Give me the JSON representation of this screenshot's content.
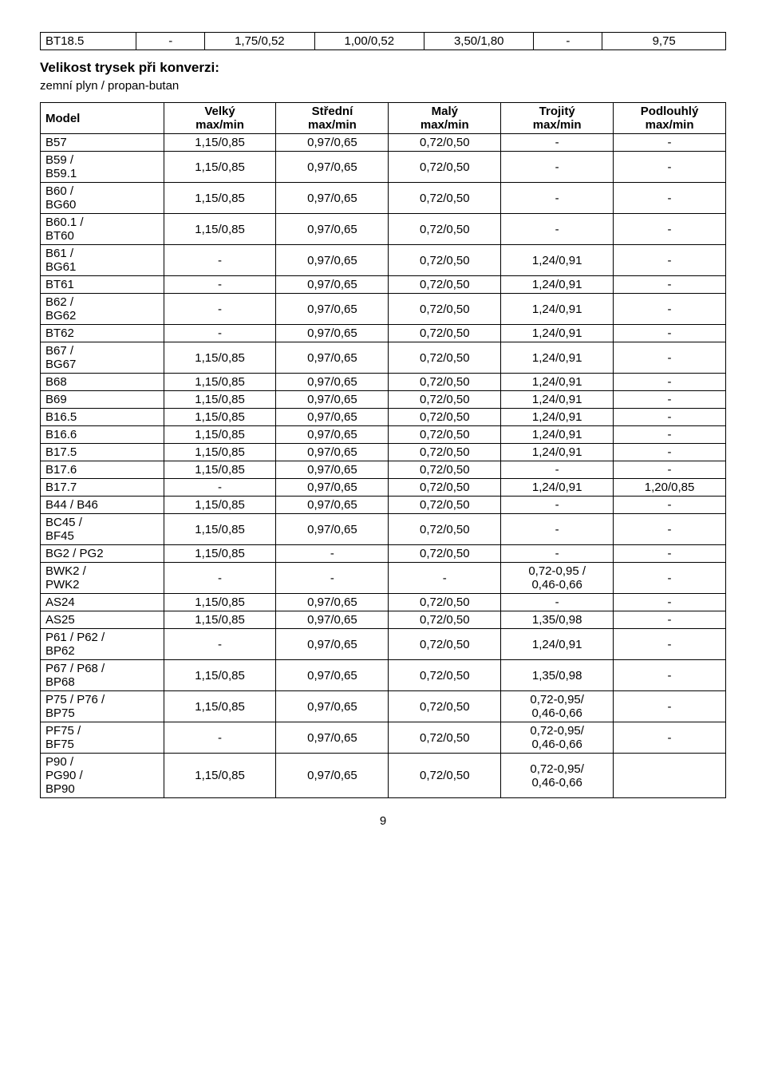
{
  "topTable": {
    "row": [
      "BT18.5",
      "-",
      "1,75/0,52",
      "1,00/0,52",
      "3,50/1,80",
      "-",
      "9,75"
    ]
  },
  "heading": "Velikost trysek při konverzi:",
  "subheading": "zemní plyn / propan-butan",
  "mainTable": {
    "headers": [
      "Model",
      "Velký\nmax/min",
      "Střední\nmax/min",
      "Malý\nmax/min",
      "Trojitý\nmax/min",
      "Podlouhlý\nmax/min"
    ],
    "rows": [
      [
        "B57",
        "1,15/0,85",
        "0,97/0,65",
        "0,72/0,50",
        "-",
        "-"
      ],
      [
        "B59 /\nB59.1",
        "1,15/0,85",
        "0,97/0,65",
        "0,72/0,50",
        "-",
        "-"
      ],
      [
        "B60 /\nBG60",
        "1,15/0,85",
        "0,97/0,65",
        "0,72/0,50",
        "-",
        "-"
      ],
      [
        "B60.1 /\nBT60",
        "1,15/0,85",
        "0,97/0,65",
        "0,72/0,50",
        "-",
        "-"
      ],
      [
        "B61 /\nBG61",
        "-",
        "0,97/0,65",
        "0,72/0,50",
        "1,24/0,91",
        "-"
      ],
      [
        "BT61",
        "-",
        "0,97/0,65",
        "0,72/0,50",
        "1,24/0,91",
        "-"
      ],
      [
        "B62 /\nBG62",
        "-",
        "0,97/0,65",
        "0,72/0,50",
        "1,24/0,91",
        "-"
      ],
      [
        "BT62",
        "-",
        "0,97/0,65",
        "0,72/0,50",
        "1,24/0,91",
        "-"
      ],
      [
        "B67 /\nBG67",
        "1,15/0,85",
        "0,97/0,65",
        "0,72/0,50",
        "1,24/0,91",
        "-"
      ],
      [
        "B68",
        "1,15/0,85",
        "0,97/0,65",
        "0,72/0,50",
        "1,24/0,91",
        "-"
      ],
      [
        "B69",
        "1,15/0,85",
        "0,97/0,65",
        "0,72/0,50",
        "1,24/0,91",
        "-"
      ],
      [
        "B16.5",
        "1,15/0,85",
        "0,97/0,65",
        "0,72/0,50",
        "1,24/0,91",
        "-"
      ],
      [
        "B16.6",
        "1,15/0,85",
        "0,97/0,65",
        "0,72/0,50",
        "1,24/0,91",
        "-"
      ],
      [
        "B17.5",
        "1,15/0,85",
        "0,97/0,65",
        "0,72/0,50",
        "1,24/0,91",
        "-"
      ],
      [
        "B17.6",
        "1,15/0,85",
        "0,97/0,65",
        "0,72/0,50",
        "-",
        "-"
      ],
      [
        "B17.7",
        "-",
        "0,97/0,65",
        "0,72/0,50",
        "1,24/0,91",
        "1,20/0,85"
      ],
      [
        "B44 / B46",
        "1,15/0,85",
        "0,97/0,65",
        "0,72/0,50",
        "-",
        "-"
      ],
      [
        "BC45 /\nBF45",
        "1,15/0,85",
        "0,97/0,65",
        "0,72/0,50",
        "-",
        "-"
      ],
      [
        "BG2 / PG2",
        "1,15/0,85",
        "-",
        "0,72/0,50",
        "-",
        "-"
      ],
      [
        "BWK2 /\nPWK2",
        "-",
        "-",
        "-",
        "0,72-0,95 /\n0,46-0,66",
        "-"
      ],
      [
        "AS24",
        "1,15/0,85",
        "0,97/0,65",
        "0,72/0,50",
        "-",
        "-"
      ],
      [
        "AS25",
        "1,15/0,85",
        "0,97/0,65",
        "0,72/0,50",
        "1,35/0,98",
        "-"
      ],
      [
        "P61 / P62 /\nBP62",
        "-",
        "0,97/0,65",
        "0,72/0,50",
        "1,24/0,91",
        "-"
      ],
      [
        "P67 / P68 /\nBP68",
        "1,15/0,85",
        "0,97/0,65",
        "0,72/0,50",
        "1,35/0,98",
        "-"
      ],
      [
        "P75 / P76 /\nBP75",
        "1,15/0,85",
        "0,97/0,65",
        "0,72/0,50",
        "0,72-0,95/\n0,46-0,66",
        "-"
      ],
      [
        "PF75 /\nBF75",
        "-",
        "0,97/0,65",
        "0,72/0,50",
        "0,72-0,95/\n0,46-0,66",
        "-"
      ],
      [
        "P90 /\nPG90 /\nBP90",
        "1,15/0,85",
        "0,97/0,65",
        "0,72/0,50",
        "0,72-0,95/\n0,46-0,66",
        ""
      ]
    ]
  },
  "pageNumber": "9"
}
